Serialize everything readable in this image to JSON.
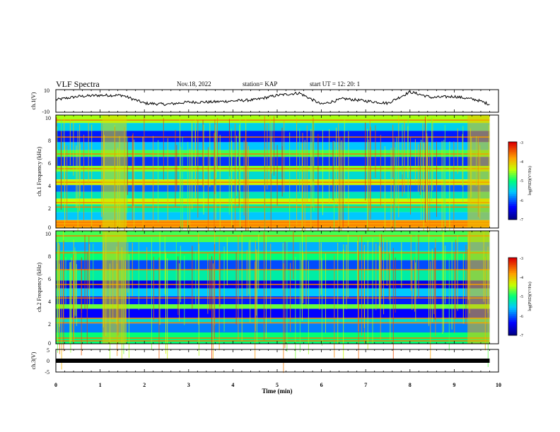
{
  "header": {
    "title": "VLF Spectra",
    "date": "Nov.18, 2022",
    "station": "station= KAP",
    "start": "start  UT =   12: 20: 1"
  },
  "chart_data": [
    {
      "type": "line",
      "panel": "ch1-waveform",
      "ylabel": "ch.1(V)",
      "ylim": [
        -10,
        10
      ],
      "yticks": [
        "10",
        "-10"
      ],
      "x": [
        0,
        0.5,
        1,
        1.5,
        2,
        2.5,
        3,
        3.5,
        4,
        4.5,
        5,
        5.5,
        6,
        6.5,
        7,
        7.5,
        8,
        8.5,
        9,
        9.5,
        9.8
      ],
      "y": [
        1,
        4,
        5,
        5,
        -2,
        -3,
        -1,
        -1,
        0,
        1,
        5,
        7,
        -3,
        2,
        0,
        -2,
        8,
        3,
        4,
        1,
        -3
      ],
      "xlim": [
        0,
        10
      ],
      "color": "#000000"
    },
    {
      "type": "heatmap",
      "panel": "ch1-spectrogram",
      "ylabel": "ch.1 Frequency (kHz)",
      "ylim": [
        0,
        10
      ],
      "yticks": [
        "0",
        "2",
        "4",
        "6",
        "8",
        "10"
      ],
      "xlim": [
        0,
        10
      ],
      "colorbar": {
        "label": "log(PSD)(V²/Hz)",
        "range": [
          -7,
          -3
        ],
        "ticks": [
          "-3",
          "-4",
          "-5",
          "-6",
          "-7"
        ]
      },
      "bands_khz": [
        {
          "from": 9.3,
          "to": 10,
          "level": -4.5
        },
        {
          "from": 8.6,
          "to": 9.3,
          "level": -5.5
        },
        {
          "from": 7.6,
          "to": 8.6,
          "level": -6.3
        },
        {
          "from": 6.9,
          "to": 7.6,
          "level": -5.6
        },
        {
          "from": 6.3,
          "to": 6.9,
          "level": -4.8
        },
        {
          "from": 5.5,
          "to": 6.3,
          "level": -6.2
        },
        {
          "from": 5.0,
          "to": 5.5,
          "level": -4.6
        },
        {
          "from": 4.3,
          "to": 5.0,
          "level": -5.4
        },
        {
          "from": 3.8,
          "to": 4.3,
          "level": -4.3
        },
        {
          "from": 3.2,
          "to": 3.8,
          "level": -6.0
        },
        {
          "from": 2.6,
          "to": 3.2,
          "level": -5.3
        },
        {
          "from": 2.1,
          "to": 2.6,
          "level": -4.4
        },
        {
          "from": 1.4,
          "to": 2.1,
          "level": -5.2
        },
        {
          "from": 0.7,
          "to": 1.4,
          "level": -5.6
        },
        {
          "from": 0,
          "to": 0.7,
          "level": -3.8
        }
      ],
      "bursts_min": [
        {
          "from": 1.05,
          "to": 1.6,
          "level": -4.2
        },
        {
          "from": 9.3,
          "to": 9.8,
          "level": -4.0
        }
      ]
    },
    {
      "type": "heatmap",
      "panel": "ch2-spectrogram",
      "ylabel": "ch.2 Frequency (kHz)",
      "ylim": [
        0,
        10
      ],
      "yticks": [
        "0",
        "2",
        "4",
        "6",
        "8",
        "10"
      ],
      "xlim": [
        0,
        10
      ],
      "colorbar": {
        "label": "log(PSD)(V²/Hz)",
        "range": [
          -7,
          -3
        ],
        "ticks": [
          "-3",
          "-4",
          "-5",
          "-6",
          "-7"
        ]
      },
      "bands_khz": [
        {
          "from": 9.0,
          "to": 10,
          "level": -4.8
        },
        {
          "from": 8.2,
          "to": 9.0,
          "level": -5.7
        },
        {
          "from": 7.4,
          "to": 8.2,
          "level": -5.0
        },
        {
          "from": 6.6,
          "to": 7.4,
          "level": -6.1
        },
        {
          "from": 5.6,
          "to": 6.6,
          "level": -5.2
        },
        {
          "from": 4.9,
          "to": 5.6,
          "level": -6.5
        },
        {
          "from": 4.2,
          "to": 4.9,
          "level": -5.6
        },
        {
          "from": 3.5,
          "to": 4.2,
          "level": -6.3
        },
        {
          "from": 3.1,
          "to": 3.5,
          "level": -4.7
        },
        {
          "from": 2.3,
          "to": 3.1,
          "level": -6.4
        },
        {
          "from": 1.8,
          "to": 2.3,
          "level": -5.4
        },
        {
          "from": 1.0,
          "to": 1.8,
          "level": -5.9
        },
        {
          "from": 0,
          "to": 1.0,
          "level": -5.0
        }
      ],
      "bursts_min": [
        {
          "from": 1.05,
          "to": 1.6,
          "level": -4.1
        },
        {
          "from": 9.3,
          "to": 9.8,
          "level": -4.0
        }
      ]
    },
    {
      "type": "line",
      "panel": "ch3-waveform",
      "ylabel": "ch.3(V)",
      "ylim": [
        -5,
        5
      ],
      "yticks": [
        "5",
        "0",
        "-5"
      ],
      "x": [
        0,
        9.8
      ],
      "y": [
        0,
        0
      ],
      "xlim": [
        0,
        10
      ],
      "xlabel": "Time  (min)",
      "xticks": [
        "0",
        "1",
        "2",
        "3",
        "4",
        "5",
        "6",
        "7",
        "8",
        "9",
        "10"
      ],
      "color": "#000000"
    }
  ]
}
